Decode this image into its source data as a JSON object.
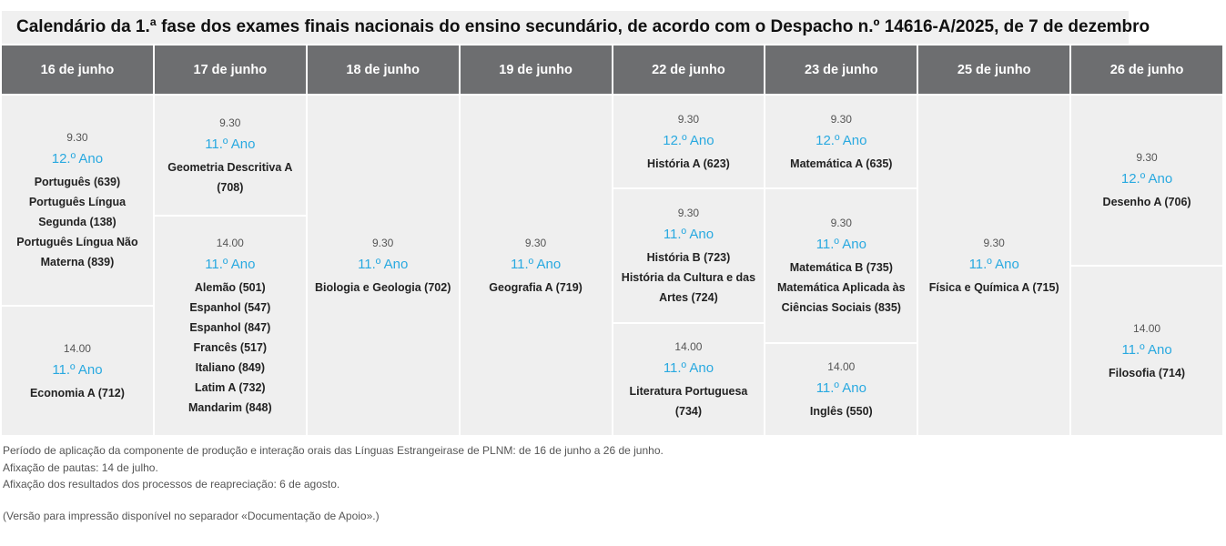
{
  "title": "Calendário da 1.ª fase dos exames finais nacionais do ensino secundário, de acordo com o Despacho n.º 14616-A/2025, de 7 de dezembro",
  "columns": [
    {
      "date": "16 de junho",
      "slots": [
        {
          "time": "9.30",
          "year": "12.º Ano",
          "subjects": [
            "Português (639)",
            "Português Língua Segunda (138)",
            "Português Língua Não Materna (839)"
          ]
        },
        {
          "time": "14.00",
          "year": "11.º Ano",
          "subjects": [
            "Economia A (712)"
          ]
        }
      ]
    },
    {
      "date": "17 de junho",
      "slots": [
        {
          "time": "9.30",
          "year": "11.º Ano",
          "subjects": [
            "Geometria Descritiva A (708)"
          ]
        },
        {
          "time": "14.00",
          "year": "11.º Ano",
          "subjects": [
            "Alemão (501)",
            "Espanhol (547)",
            "Espanhol (847)",
            "Francês (517)",
            "Italiano (849)",
            "Latim A (732)",
            "Mandarim (848)"
          ]
        }
      ]
    },
    {
      "date": "18 de junho",
      "slots": [
        {
          "time": "9.30",
          "year": "11.º Ano",
          "subjects": [
            "Biologia e Geologia (702)"
          ]
        }
      ]
    },
    {
      "date": "19 de junho",
      "slots": [
        {
          "time": "9.30",
          "year": "11.º Ano",
          "subjects": [
            "Geografia A (719)"
          ]
        }
      ]
    },
    {
      "date": "22 de junho",
      "slots": [
        {
          "time": "9.30",
          "year": "12.º Ano",
          "subjects": [
            "História A (623)"
          ]
        },
        {
          "time": "9.30",
          "year": "11.º Ano",
          "subjects": [
            "História B (723)",
            "História da Cultura e das Artes (724)"
          ]
        },
        {
          "time": "14.00",
          "year": "11.º Ano",
          "subjects": [
            "Literatura Portuguesa (734)"
          ]
        }
      ]
    },
    {
      "date": "23 de junho",
      "slots": [
        {
          "time": "9.30",
          "year": "12.º Ano",
          "subjects": [
            "Matemática A (635)"
          ]
        },
        {
          "time": "9.30",
          "year": "11.º Ano",
          "subjects": [
            "Matemática B (735)",
            "Matemática Aplicada às Ciências Sociais (835)"
          ]
        },
        {
          "time": "14.00",
          "year": "11.º Ano",
          "subjects": [
            "Inglês (550)"
          ]
        }
      ]
    },
    {
      "date": "25 de junho",
      "slots": [
        {
          "time": "9.30",
          "year": "11.º Ano",
          "subjects": [
            "Física e Química A (715)"
          ]
        }
      ]
    },
    {
      "date": "26 de junho",
      "slots": [
        {
          "time": "9.30",
          "year": "12.º Ano",
          "subjects": [
            "Desenho A (706)"
          ]
        },
        {
          "time": "14.00",
          "year": "11.º Ano",
          "subjects": [
            "Filosofia (714)"
          ]
        }
      ]
    }
  ],
  "notes": [
    "Período de aplicação da componente de produção e interação orais das Línguas Estrangeirase de PLNM: de 16 de junho a 26 de junho.",
    "Afixação de pautas: 14 de julho.",
    "Afixação dos resultados dos processos de reapreciação: 6 de agosto.",
    "(Versão para impressão disponível no separador «Documentação de Apoio».)"
  ]
}
